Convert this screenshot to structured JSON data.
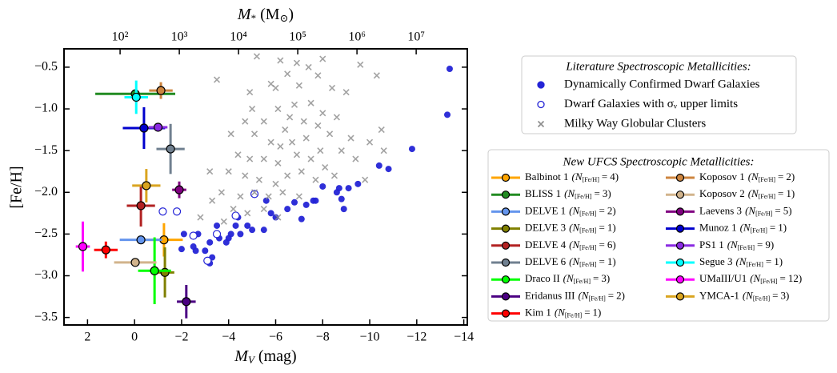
{
  "chart_data": {
    "type": "scatter",
    "xlabel": {
      "symbol": "M",
      "sub": "V",
      "unit": "(mag)"
    },
    "ylabel": "[Fe/H]",
    "x2label": {
      "symbol": "M",
      "sub": "*",
      "unit_open": "(M",
      "unit_sub": "⊙",
      "unit_close": ")"
    },
    "xlim": [
      3,
      -14.15
    ],
    "xticks": [
      2,
      0,
      {
        "value": -2,
        "label": "−2"
      },
      {
        "value": -4,
        "label": "−4"
      },
      {
        "value": -6,
        "label": "−6"
      },
      {
        "value": -8,
        "label": "−8"
      },
      {
        "value": -10,
        "label": "−10"
      },
      {
        "value": -12,
        "label": "−12"
      },
      {
        "value": -14,
        "label": "−14"
      }
    ],
    "ylim": [
      -3.59,
      -0.28
    ],
    "yticks": [
      {
        "value": -0.5,
        "label": "−0.5"
      },
      {
        "value": -1.0,
        "label": "−1.0"
      },
      {
        "value": -1.5,
        "label": "−1.5"
      },
      {
        "value": -2.0,
        "label": "−2.0"
      },
      {
        "value": -2.5,
        "label": "−2.5"
      },
      {
        "value": -3.0,
        "label": "−3.0"
      },
      {
        "value": -3.5,
        "label": "−3.5"
      }
    ],
    "x2scale": "log",
    "x2lim": [
      11.3,
      73000000
    ],
    "x2ticks": [
      {
        "value": 100,
        "label": "10²"
      },
      {
        "value": 1000,
        "label": "10³"
      },
      {
        "value": 10000,
        "label": "10⁴"
      },
      {
        "value": 100000,
        "label": "10⁵"
      },
      {
        "value": 1000000,
        "label": "10⁶"
      },
      {
        "value": 10000000,
        "label": "10⁷"
      }
    ],
    "literature_title": "Literature Spectroscopic Metallicities:",
    "literature": [
      {
        "name": "Dynamically Confirmed Dwarf Galaxies",
        "marker": "filled",
        "color": "#2424d6",
        "x": [
          -13.4,
          -13.3,
          -11.8,
          -10.8,
          -10.4,
          -9.5,
          -9.1,
          -8.7,
          -8.6,
          -8.8,
          -8.9,
          -8.0,
          -7.7,
          -7.6,
          -7.3,
          -6.8,
          -6.5,
          -6.0,
          -5.8,
          -5.6,
          -5.5,
          -5.0,
          -4.8,
          -4.5,
          -4.3,
          -4.1,
          -4.0,
          -3.9,
          -3.6,
          -3.5,
          -3.2,
          -3.0,
          -2.7,
          -2.6,
          -2.5,
          -2.0,
          -2.1,
          -3.3,
          -3.2,
          -7.1,
          -4.4
        ],
        "y": [
          -0.52,
          -1.07,
          -1.48,
          -1.72,
          -1.68,
          -1.9,
          -1.95,
          -1.95,
          -2.0,
          -2.08,
          -2.2,
          -1.93,
          -2.1,
          -2.1,
          -2.15,
          -2.12,
          -2.2,
          -2.3,
          -2.25,
          -2.1,
          -2.45,
          -2.45,
          -2.4,
          -2.5,
          -2.4,
          -2.5,
          -2.55,
          -2.6,
          -2.55,
          -2.4,
          -2.6,
          -2.7,
          -2.5,
          -2.7,
          -2.65,
          -2.68,
          -2.5,
          -2.78,
          -2.85,
          -2.32,
          -2.3
        ]
      },
      {
        "name": "Dwarf Galaxies with σᵥ upper limits",
        "marker": "open",
        "color": "#2424d6",
        "x": [
          -1.2,
          -1.8,
          -2.5,
          -3.1,
          -3.5,
          -4.3,
          -5.1
        ],
        "y": [
          -2.23,
          -2.23,
          -2.52,
          -2.82,
          -2.5,
          -2.28,
          -2.02
        ]
      },
      {
        "name": "Milky Way Globular Clusters",
        "marker": "cross",
        "color": "#8c8c8c",
        "x": [
          -5.2,
          -6.2,
          -6.9,
          -7.4,
          -8.0,
          -9.6,
          -10.3,
          -7.8,
          -6.5,
          -5.8,
          -4.9,
          -6.0,
          -7.0,
          -8.4,
          -9.0,
          -3.5,
          -5.0,
          -6.1,
          -6.8,
          -7.5,
          -8.0,
          -8.6,
          -5.5,
          -6.4,
          -7.2,
          -7.8,
          -8.3,
          -9.2,
          -4.1,
          -5.1,
          -5.8,
          -6.2,
          -6.7,
          -7.3,
          -7.9,
          -8.8,
          -10.0,
          -10.6,
          -4.4,
          -4.9,
          -5.5,
          -6.1,
          -6.9,
          -7.5,
          -8.1,
          -9.4,
          -3.2,
          -4.0,
          -4.7,
          -5.3,
          -6.0,
          -6.5,
          -7.1,
          -7.7,
          -8.5,
          -3.7,
          -4.5,
          -5.1,
          -5.7,
          -6.3,
          -7.0,
          -3.3,
          -4.2,
          -4.8,
          -5.5,
          -6.1,
          -2.8,
          -3.8,
          -9.8,
          -10.5,
          -4.7,
          -6.6
        ],
        "y": [
          -0.37,
          -0.42,
          -0.45,
          -0.5,
          -0.4,
          -0.47,
          -0.6,
          -0.6,
          -0.58,
          -0.7,
          -0.8,
          -0.75,
          -0.72,
          -0.75,
          -0.8,
          -0.65,
          -1.0,
          -1.0,
          -0.95,
          -0.93,
          -1.05,
          -1.1,
          -1.15,
          -1.25,
          -1.15,
          -1.2,
          -1.3,
          -1.35,
          -1.3,
          -1.3,
          -1.4,
          -1.45,
          -1.4,
          -1.35,
          -1.5,
          -1.5,
          -1.4,
          -1.5,
          -1.55,
          -1.6,
          -1.6,
          -1.65,
          -1.55,
          -1.6,
          -1.7,
          -1.6,
          -1.75,
          -1.75,
          -1.8,
          -1.85,
          -1.9,
          -1.8,
          -1.75,
          -1.85,
          -1.8,
          -2.0,
          -2.05,
          -2.0,
          -2.05,
          -2.0,
          -2.05,
          -2.1,
          -2.2,
          -2.25,
          -2.2,
          -2.3,
          -2.3,
          -2.35,
          -1.85,
          -1.25,
          -1.15,
          -1.1
        ]
      }
    ],
    "ufcs_title": "New UFCS Spectroscopic Metallicities:",
    "count_open": "(N",
    "count_sub": "[Fe/H]",
    "count_eq": "=",
    "count_close": ")",
    "ufcs": [
      {
        "name": "Balbinot 1",
        "n": 4,
        "color": "#ffa500",
        "x": -1.25,
        "y": -2.57,
        "xerr": 0.8,
        "yerr": 0.2
      },
      {
        "name": "BLISS 1",
        "n": 3,
        "color": "#228b22",
        "x": -0.03,
        "y": -0.82,
        "xerr": 1.7,
        "yerr": 0.03
      },
      {
        "name": "DELVE 1",
        "n": 2,
        "color": "#6495ed",
        "x": -0.27,
        "y": -2.57,
        "xerr": 0.9,
        "yerr": 0.05
      },
      {
        "name": "DELVE 3",
        "n": 1,
        "color": "#808000",
        "x": -1.29,
        "y": -2.96,
        "xerr": 0.4,
        "yerr": 0.3
      },
      {
        "name": "DELVE 4",
        "n": 6,
        "color": "#b22222",
        "x": -0.27,
        "y": -2.16,
        "xerr": 0.6,
        "yerr": 0.25
      },
      {
        "name": "DELVE 6",
        "n": 1,
        "color": "#708090",
        "x": -1.53,
        "y": -1.48,
        "xerr": 0.6,
        "yerr": 0.3
      },
      {
        "name": "Draco II",
        "n": 3,
        "color": "#00ff00",
        "x": -0.85,
        "y": -2.94,
        "xerr": 0.7,
        "yerr": 0.4
      },
      {
        "name": "Eridanus III",
        "n": 2,
        "color": "#4b0082",
        "x": -2.2,
        "y": -3.31,
        "xerr": 0.4,
        "yerr": 0.2
      },
      {
        "name": "Kim 1",
        "n": 1,
        "color": "#ff0000",
        "x": 1.22,
        "y": -2.69,
        "xerr": 0.5,
        "yerr": 0.1
      },
      {
        "name": "Koposov 1",
        "n": 2,
        "color": "#cd853f",
        "x": -1.12,
        "y": -0.78,
        "xerr": 0.5,
        "yerr": 0.1
      },
      {
        "name": "Koposov 2",
        "n": 1,
        "color": "#d2b48c",
        "x": -0.03,
        "y": -2.84,
        "xerr": 0.9,
        "yerr": 0.05
      },
      {
        "name": "Laevens 3",
        "n": 5,
        "color": "#800080",
        "x": -1.9,
        "y": -1.97,
        "xerr": 0.3,
        "yerr": 0.1
      },
      {
        "name": "Munoz 1",
        "n": 1,
        "color": "#0000cd",
        "x": -0.4,
        "y": -1.23,
        "xerr": 0.9,
        "yerr": 0.25
      },
      {
        "name": "PS1 1",
        "n": 9,
        "color": "#8a2be2",
        "x": -1.0,
        "y": -1.22,
        "xerr": 0.4,
        "yerr": 0.05
      },
      {
        "name": "Segue 3",
        "n": 1,
        "color": "#00ffff",
        "x": -0.07,
        "y": -0.86,
        "xerr": 0.5,
        "yerr": 0.2
      },
      {
        "name": "UMaIII/U1",
        "n": 12,
        "color": "#ff00ff",
        "x": 2.2,
        "y": -2.65,
        "xerr": 0.3,
        "yerr": 0.3
      },
      {
        "name": "YMCA-1",
        "n": 3,
        "color": "#daa520",
        "x": -0.5,
        "y": -1.92,
        "xerr": 0.6,
        "yerr": 0.2
      }
    ]
  }
}
